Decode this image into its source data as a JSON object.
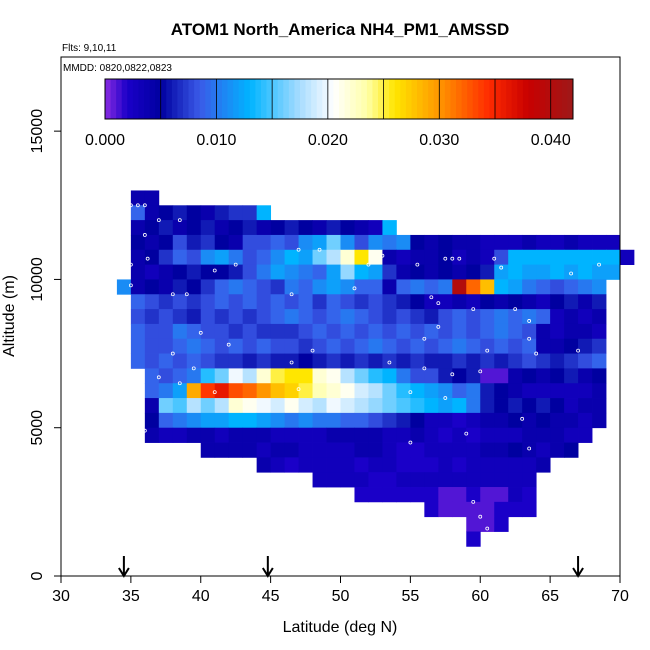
{
  "chart_data": {
    "type": "heatmap",
    "title": "ATOM1 North_America NH4_PM1_AMSSD",
    "flights_label": "Flts: 9,10,11",
    "dates_label": "MMDD: 0820,0822,0823",
    "xlabel": "Latitude (deg N)",
    "ylabel": "Altitude (m)",
    "xlim": [
      30,
      70
    ],
    "ylim": [
      0,
      17500
    ],
    "x_ticks": [
      30,
      35,
      40,
      45,
      50,
      55,
      60,
      65,
      70
    ],
    "y_ticks": [
      0,
      5000,
      10000,
      15000
    ],
    "x_tick_labels": [
      "30",
      "35",
      "40",
      "45",
      "50",
      "55",
      "60",
      "65",
      "70"
    ],
    "y_tick_labels": [
      "0",
      "5000",
      "10000",
      "15000"
    ],
    "cell_width_deg": 1,
    "cell_height_m": 500,
    "colorbar": {
      "min": 0,
      "max": 0.042,
      "ticks": [
        0.0,
        0.01,
        0.02,
        0.03,
        0.04
      ],
      "tick_labels": [
        "0.000",
        "0.010",
        "0.020",
        "0.030",
        "0.040"
      ],
      "divisions": [
        0,
        0.005,
        0.01,
        0.015,
        0.02,
        0.025,
        0.03,
        0.035,
        0.04
      ],
      "stops": [
        {
          "v": 0.0,
          "c": "#8a2be2"
        },
        {
          "v": 0.002,
          "c": "#1a00c8"
        },
        {
          "v": 0.005,
          "c": "#0000a0"
        },
        {
          "v": 0.0085,
          "c": "#3a5ae8"
        },
        {
          "v": 0.013,
          "c": "#00b4ff"
        },
        {
          "v": 0.0175,
          "c": "#a8dcff"
        },
        {
          "v": 0.0205,
          "c": "#ffffff"
        },
        {
          "v": 0.0235,
          "c": "#ffffa8"
        },
        {
          "v": 0.026,
          "c": "#ffe600"
        },
        {
          "v": 0.03,
          "c": "#ff9600"
        },
        {
          "v": 0.0345,
          "c": "#ff2a00"
        },
        {
          "v": 0.038,
          "c": "#c80000"
        },
        {
          "v": 0.042,
          "c": "#9e1818"
        }
      ]
    },
    "flight_arrows_lat": [
      34.5,
      44.8,
      67.0
    ],
    "cell_rows": [
      {
        "alt": 12500,
        "lat0": 35,
        "values": [
          0.004,
          0.004
        ]
      },
      {
        "alt": 12000,
        "lat0": 35,
        "values": [
          0.009,
          0.004,
          0.005,
          0.006,
          0.005,
          0.004,
          0.006,
          0.007,
          0.007,
          0.013
        ]
      },
      {
        "alt": 11500,
        "lat0": 35,
        "values": [
          0.004,
          0.005,
          0.006,
          0.004,
          0.005,
          0.006,
          0.004,
          0.005,
          0.006,
          0.004,
          0.005,
          0.006,
          0.005,
          0.004,
          0.006,
          0.005,
          0.004,
          0.003,
          0.013
        ]
      },
      {
        "alt": 11000,
        "lat0": 35,
        "values": [
          0.005,
          0.004,
          0.005,
          0.008,
          0.006,
          0.007,
          0.005,
          0.004,
          0.008,
          0.008,
          0.009,
          0.008,
          0.011,
          0.012,
          0.016,
          0.011,
          0.008,
          0.011,
          0.01,
          0.011,
          0.005,
          0.004,
          0.005,
          0.004,
          0.004,
          0.003,
          0.003,
          0.003,
          0.004,
          0.003,
          0.003,
          0.004,
          0.003,
          0.003,
          0.003
        ]
      },
      {
        "alt": 10500,
        "lat0": 35,
        "values": [
          0.004,
          0.005,
          0.007,
          0.009,
          0.008,
          0.011,
          0.012,
          0.01,
          0.008,
          0.009,
          0.011,
          0.013,
          0.012,
          0.016,
          0.018,
          0.022,
          0.026,
          0.021,
          0.004,
          0.003,
          0.004,
          0.004,
          0.005,
          0.003,
          0.004,
          0.003,
          0.008,
          0.013,
          0.013,
          0.013,
          0.013,
          0.013,
          0.013,
          0.013,
          0.013,
          0.003
        ]
      },
      {
        "alt": 10000,
        "lat0": 35,
        "values": [
          0.004,
          0.003,
          0.004,
          0.005,
          0.006,
          0.005,
          0.005,
          0.006,
          0.008,
          0.01,
          0.012,
          0.011,
          0.01,
          0.009,
          0.012,
          0.017,
          0.013,
          0.012,
          0.007,
          0.004,
          0.005,
          0.004,
          0.005,
          0.004,
          0.005,
          0.006,
          0.012,
          0.013,
          0.012,
          0.012,
          0.013,
          0.012,
          0.013,
          0.012,
          0.012
        ]
      },
      {
        "alt": 9500,
        "lat0": 34,
        "values": [
          0.011,
          0.004,
          0.005,
          0.004,
          0.006,
          0.005,
          0.007,
          0.009,
          0.01,
          0.009,
          0.008,
          0.007,
          0.01,
          0.009,
          0.011,
          0.012,
          0.011,
          0.009,
          0.009,
          0.004,
          0.009,
          0.01,
          0.009,
          0.01,
          0.04,
          0.032,
          0.028,
          0.013,
          0.012,
          0.01,
          0.009,
          0.008,
          0.009,
          0.01,
          0.011
        ]
      },
      {
        "alt": 9000,
        "lat0": 35,
        "values": [
          0.009,
          0.008,
          0.007,
          0.008,
          0.007,
          0.008,
          0.009,
          0.008,
          0.009,
          0.008,
          0.009,
          0.008,
          0.009,
          0.007,
          0.009,
          0.008,
          0.007,
          0.008,
          0.007,
          0.006,
          0.005,
          0.003,
          0.003,
          0.004,
          0.003,
          0.005,
          0.004,
          0.005,
          0.004,
          0.003,
          0.005,
          0.006,
          0.004,
          0.006
        ]
      },
      {
        "alt": 8500,
        "lat0": 35,
        "values": [
          0.008,
          0.007,
          0.008,
          0.007,
          0.006,
          0.008,
          0.007,
          0.008,
          0.007,
          0.008,
          0.009,
          0.01,
          0.009,
          0.008,
          0.009,
          0.01,
          0.009,
          0.008,
          0.007,
          0.008,
          0.007,
          0.006,
          0.008,
          0.009,
          0.008,
          0.009,
          0.01,
          0.009,
          0.01,
          0.009,
          0.003,
          0.004,
          0.003,
          0.004
        ]
      },
      {
        "alt": 8000,
        "lat0": 35,
        "values": [
          0.009,
          0.008,
          0.008,
          0.01,
          0.009,
          0.008,
          0.008,
          0.007,
          0.008,
          0.007,
          0.007,
          0.007,
          0.008,
          0.009,
          0.008,
          0.009,
          0.008,
          0.009,
          0.008,
          0.009,
          0.008,
          0.009,
          0.008,
          0.009,
          0.008,
          0.009,
          0.01,
          0.009,
          0.008,
          0.004,
          0.003,
          0.004,
          0.004,
          0.003
        ]
      },
      {
        "alt": 7500,
        "lat0": 35,
        "values": [
          0.009,
          0.008,
          0.008,
          0.009,
          0.01,
          0.009,
          0.008,
          0.009,
          0.008,
          0.009,
          0.008,
          0.008,
          0.007,
          0.008,
          0.009,
          0.008,
          0.009,
          0.01,
          0.009,
          0.008,
          0.009,
          0.008,
          0.009,
          0.01,
          0.009,
          0.008,
          0.009,
          0.008,
          0.009,
          0.004,
          0.004,
          0.005,
          0.006,
          0.007
        ]
      },
      {
        "alt": 7000,
        "lat0": 35,
        "values": [
          0.009,
          0.008,
          0.009,
          0.008,
          0.009,
          0.008,
          0.007,
          0.007,
          0.006,
          0.007,
          0.006,
          0.006,
          0.005,
          0.006,
          0.007,
          0.006,
          0.007,
          0.006,
          0.007,
          0.006,
          0.007,
          0.006,
          0.006,
          0.007,
          0.006,
          0.007,
          0.006,
          0.007,
          0.008,
          0.007,
          0.006,
          0.007,
          0.008,
          0.009
        ]
      },
      {
        "alt": 6500,
        "lat0": 36,
        "values": [
          0.009,
          0.008,
          0.009,
          0.01,
          0.014,
          0.016,
          0.02,
          0.018,
          0.022,
          0.025,
          0.026,
          0.026,
          0.022,
          0.021,
          0.018,
          0.016,
          0.014,
          0.013,
          0.01,
          0.008,
          0.008,
          0.006,
          0.005,
          0.006,
          0.001,
          0.001,
          0.004,
          0.005,
          0.004,
          0.005,
          0.006,
          0.004,
          0.005
        ]
      },
      {
        "alt": 6000,
        "lat0": 36,
        "values": [
          0.009,
          0.01,
          0.012,
          0.029,
          0.034,
          0.036,
          0.033,
          0.032,
          0.03,
          0.028,
          0.027,
          0.025,
          0.023,
          0.022,
          0.021,
          0.019,
          0.018,
          0.016,
          0.014,
          0.013,
          0.012,
          0.011,
          0.009,
          0.01,
          0.006,
          0.005,
          0.004,
          0.003,
          0.003,
          0.003,
          0.003,
          0.003,
          0.004
        ]
      },
      {
        "alt": 5500,
        "lat0": 36,
        "values": [
          0.004,
          0.016,
          0.015,
          0.018,
          0.016,
          0.018,
          0.022,
          0.021,
          0.02,
          0.019,
          0.021,
          0.019,
          0.018,
          0.02,
          0.019,
          0.018,
          0.017,
          0.016,
          0.015,
          0.014,
          0.013,
          0.012,
          0.013,
          0.01,
          0.006,
          0.005,
          0.006,
          0.005,
          0.006,
          0.005,
          0.003,
          0.004,
          0.004
        ]
      },
      {
        "alt": 5000,
        "lat0": 36,
        "values": [
          0.005,
          0.009,
          0.01,
          0.011,
          0.012,
          0.012,
          0.013,
          0.013,
          0.012,
          0.011,
          0.01,
          0.011,
          0.01,
          0.01,
          0.009,
          0.009,
          0.008,
          0.007,
          0.006,
          0.005,
          0.003,
          0.003,
          0.002,
          0.003,
          0.004,
          0.004,
          0.005,
          0.004,
          0.005,
          0.004,
          0.004,
          0.003,
          0.004
        ]
      },
      {
        "alt": 4500,
        "lat0": 36,
        "values": [
          0.004,
          0.003,
          0.003,
          0.004,
          0.004,
          0.003,
          0.004,
          0.004,
          0.004,
          0.003,
          0.003,
          0.003,
          0.003,
          0.004,
          0.004,
          0.004,
          0.004,
          0.003,
          0.003,
          0.004,
          0.003,
          0.002,
          0.003,
          0.002,
          0.003,
          0.003,
          0.003,
          0.004,
          0.004,
          0.004,
          0.003,
          0.003
        ]
      },
      {
        "alt": 4000,
        "lat0": 40,
        "values": [
          0.004,
          0.004,
          0.004,
          0.004,
          0.003,
          0.004,
          0.004,
          0.003,
          0.003,
          0.003,
          0.003,
          0.004,
          0.004,
          0.003,
          0.002,
          0.002,
          0.003,
          0.003,
          0.003,
          0.003,
          0.004,
          0.004,
          0.005,
          0.004,
          0.003,
          0.004,
          0.005
        ]
      },
      {
        "alt": 3500,
        "lat0": 44,
        "values": [
          0.004,
          0.003,
          0.002,
          0.003,
          0.003,
          0.003,
          0.003,
          0.002,
          0.003,
          0.003,
          0.002,
          0.002,
          0.002,
          0.003,
          0.002,
          0.003,
          0.003,
          0.003,
          0.003,
          0.003,
          0.004
        ]
      },
      {
        "alt": 3000,
        "lat0": 48,
        "values": [
          0.003,
          0.003,
          0.003,
          0.003,
          0.002,
          0.002,
          0.003,
          0.003,
          0.003,
          0.003,
          0.003,
          0.003,
          0.003,
          0.003,
          0.003,
          0.003
        ]
      },
      {
        "alt": 2500,
        "lat0": 51,
        "values": [
          0.002,
          0.002,
          0.002,
          0.002,
          0.002,
          0.002,
          0.001,
          0.001,
          0.002,
          0.001,
          0.001,
          0.003,
          0.002
        ]
      },
      {
        "alt": 2000,
        "lat0": 56,
        "values": [
          0.002,
          0.001,
          0.001,
          0.001,
          0.001,
          0.002,
          0.002,
          0.002
        ]
      },
      {
        "alt": 1500,
        "lat0": 59,
        "values": [
          0.001,
          0.001,
          0.002
        ]
      },
      {
        "alt": 1000,
        "lat0": 59,
        "values": [
          0.002
        ]
      }
    ],
    "sample_points": [
      [
        35.0,
        12500
      ],
      [
        35.5,
        12500
      ],
      [
        36.0,
        12500
      ],
      [
        37.0,
        12000
      ],
      [
        36.0,
        11500
      ],
      [
        38.5,
        12000
      ],
      [
        34.8,
        11000
      ],
      [
        35.0,
        10500
      ],
      [
        35.0,
        9800
      ],
      [
        36.2,
        10700
      ],
      [
        41.0,
        10300
      ],
      [
        42.5,
        10500
      ],
      [
        47.0,
        11000
      ],
      [
        48.5,
        11000
      ],
      [
        52.0,
        10500
      ],
      [
        53.0,
        10800
      ],
      [
        55.5,
        10500
      ],
      [
        57.5,
        10700
      ],
      [
        58.0,
        10700
      ],
      [
        58.5,
        10700
      ],
      [
        61.0,
        10700
      ],
      [
        61.5,
        10400
      ],
      [
        68.5,
        10500
      ],
      [
        66.5,
        10200
      ],
      [
        51.0,
        9700
      ],
      [
        38.0,
        9500
      ],
      [
        39.0,
        9500
      ],
      [
        46.5,
        9500
      ],
      [
        56.5,
        9400
      ],
      [
        57.0,
        9200
      ],
      [
        59.5,
        9000
      ],
      [
        62.5,
        9000
      ],
      [
        63.5,
        8600
      ],
      [
        57.0,
        8400
      ],
      [
        56.0,
        8000
      ],
      [
        40.0,
        8200
      ],
      [
        42.0,
        7800
      ],
      [
        48.0,
        7600
      ],
      [
        60.5,
        7600
      ],
      [
        63.5,
        8000
      ],
      [
        64.0,
        7500
      ],
      [
        67.0,
        7600
      ],
      [
        38.0,
        7500
      ],
      [
        39.5,
        7000
      ],
      [
        46.5,
        7200
      ],
      [
        53.5,
        7200
      ],
      [
        56.0,
        7000
      ],
      [
        60.0,
        6900
      ],
      [
        37.0,
        6700
      ],
      [
        38.5,
        6500
      ],
      [
        41.0,
        6200
      ],
      [
        47.0,
        6300
      ],
      [
        55.0,
        6200
      ],
      [
        57.5,
        6000
      ],
      [
        35.5,
        5300
      ],
      [
        36.0,
        4900
      ],
      [
        59.0,
        4800
      ],
      [
        63.0,
        5300
      ],
      [
        55.0,
        4500
      ],
      [
        59.5,
        2500
      ],
      [
        60.0,
        2000
      ],
      [
        60.5,
        1600
      ],
      [
        63.5,
        4300
      ],
      [
        58.0,
        6800
      ]
    ]
  }
}
